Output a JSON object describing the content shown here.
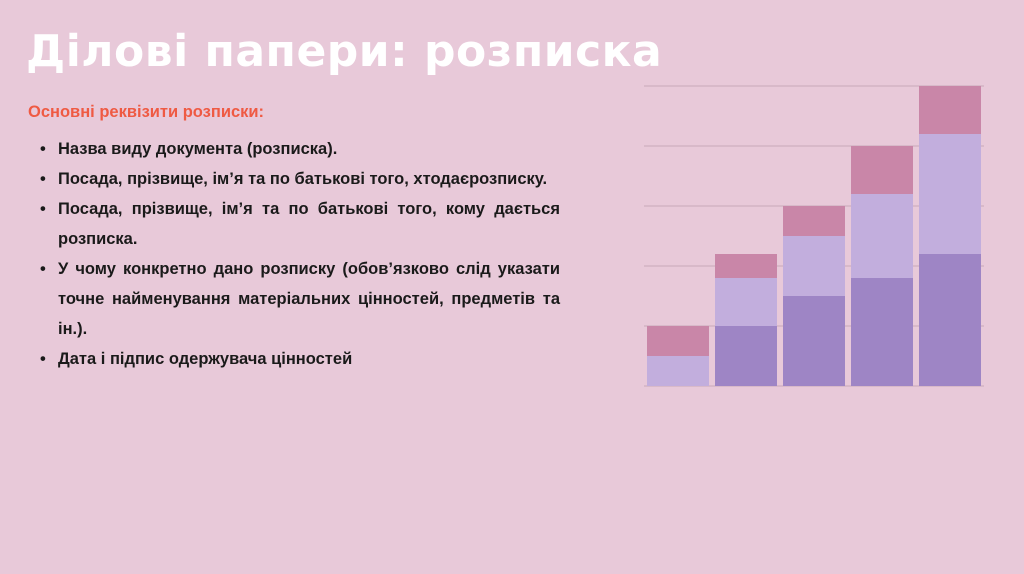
{
  "slide": {
    "title": "Ділові папери: розписка",
    "subheading": "Основні реквізити розписки:",
    "items": [
      " Назва виду документа (розписка).",
      "Посада, прізвище, ім’я та по батькові того, хтодаєрозписку.",
      " Посада, прізвище, ім’я та по батькові того, кому дається розписка.",
      "У чому конкретно дано розписку (обов’язково слід указати точне найменування матеріальних цінностей, предметів та ін.).",
      " Дата і підпис одержувача цінностей"
    ]
  },
  "colors": {
    "background": "#e8c9d9",
    "title": "#ffffff",
    "subheading": "#ef5a43",
    "segment_bottom": "#9e85c5",
    "segment_middle": "#c2aedd",
    "segment_top": "#c986a8",
    "gridline": "#c7a9b9"
  },
  "chart_data": {
    "type": "bar",
    "stacked": true,
    "categories": [
      "",
      "",
      "",
      "",
      ""
    ],
    "series": [
      {
        "values": [
          0,
          1,
          1.5,
          1.8,
          2.2
        ]
      },
      {
        "values": [
          0.5,
          0.8,
          1,
          1.4,
          2
        ]
      },
      {
        "values": [
          0.5,
          0.4,
          0.5,
          0.8,
          0.8
        ]
      }
    ],
    "ylim": [
      0,
      5
    ],
    "grid": true,
    "axis_labels": false,
    "legend": "none"
  }
}
